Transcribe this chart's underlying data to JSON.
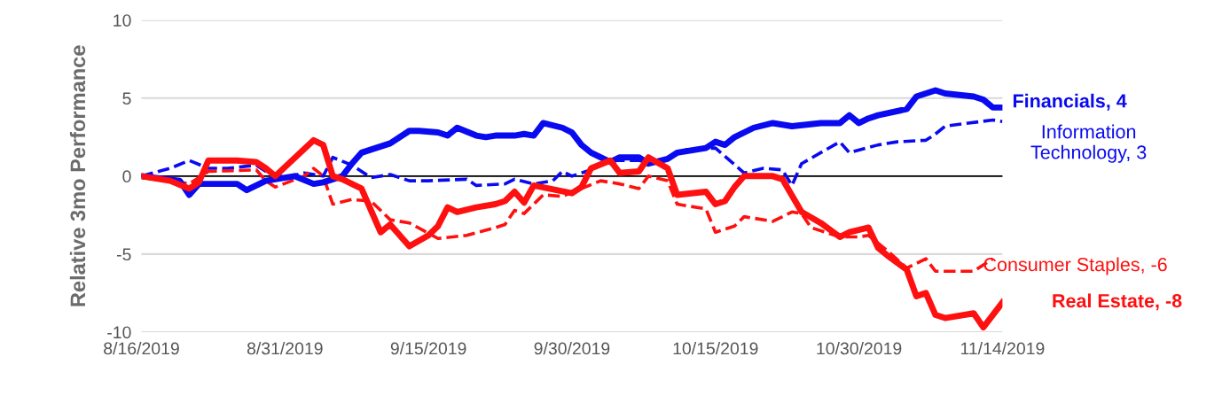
{
  "chart_data": {
    "type": "line",
    "ylabel": "Relative 3mo Performance",
    "xlim": [
      "2019-08-16",
      "2019-11-14"
    ],
    "xticks": [
      {
        "value": "2019-08-16",
        "label": "8/16/2019"
      },
      {
        "value": "2019-08-31",
        "label": "8/31/2019"
      },
      {
        "value": "2019-09-15",
        "label": "9/15/2019"
      },
      {
        "value": "2019-09-30",
        "label": "9/30/2019"
      },
      {
        "value": "2019-10-15",
        "label": "10/15/2019"
      },
      {
        "value": "2019-10-30",
        "label": "10/30/2019"
      },
      {
        "value": "2019-11-14",
        "label": "11/14/2019"
      }
    ],
    "ylim": [
      -10,
      10
    ],
    "yticks": [
      -10,
      -5,
      0,
      5,
      10
    ],
    "grid": "y",
    "ref_lines": [
      {
        "axis": "y",
        "value": 0,
        "color": "#000000"
      }
    ],
    "series": [
      {
        "name": "Financials, 4",
        "color": "#0a0af0",
        "line_style": "solid",
        "x": [
          "2019-08-16",
          "2019-08-20",
          "2019-08-21",
          "2019-08-22",
          "2019-08-26",
          "2019-08-27",
          "2019-08-29",
          "2019-09-01",
          "2019-09-03",
          "2019-09-04",
          "2019-09-06",
          "2019-09-07",
          "2019-09-08",
          "2019-09-10",
          "2019-09-11",
          "2019-09-13",
          "2019-09-14",
          "2019-09-16",
          "2019-09-17",
          "2019-09-18",
          "2019-09-20",
          "2019-09-21",
          "2019-09-22",
          "2019-09-24",
          "2019-09-25",
          "2019-09-26",
          "2019-09-27",
          "2019-09-29",
          "2019-09-30",
          "2019-10-01",
          "2019-10-02",
          "2019-10-04",
          "2019-10-05",
          "2019-10-06",
          "2019-10-07",
          "2019-10-08",
          "2019-10-10",
          "2019-10-11",
          "2019-10-14",
          "2019-10-15",
          "2019-10-16",
          "2019-10-17",
          "2019-10-19",
          "2019-10-21",
          "2019-10-23",
          "2019-10-26",
          "2019-10-28",
          "2019-10-29",
          "2019-10-30",
          "2019-10-31",
          "2019-11-01",
          "2019-11-04",
          "2019-11-05",
          "2019-11-07",
          "2019-11-08",
          "2019-11-11",
          "2019-11-12",
          "2019-11-13",
          "2019-11-14"
        ],
        "values": [
          0,
          -0.3,
          -1.2,
          -0.5,
          -0.5,
          -0.9,
          -0.3,
          0,
          -0.5,
          -0.4,
          0,
          0.8,
          1.5,
          1.9,
          2.1,
          2.9,
          2.9,
          2.8,
          2.6,
          3.1,
          2.6,
          2.5,
          2.6,
          2.6,
          2.7,
          2.6,
          3.4,
          3.1,
          2.8,
          2.0,
          1.5,
          0.9,
          1.2,
          1.2,
          1.2,
          0.8,
          1.1,
          1.5,
          1.8,
          2.2,
          2.0,
          2.5,
          3.1,
          3.4,
          3.2,
          3.4,
          3.4,
          3.9,
          3.4,
          3.7,
          3.9,
          4.3,
          5.1,
          5.5,
          5.3,
          5.1,
          4.9,
          4.4,
          4.4
        ]
      },
      {
        "name": "Information\nTechnology, 3",
        "color": "#0a0af0",
        "line_style": "dashed",
        "x": [
          "2019-08-16",
          "2019-08-19",
          "2019-08-21",
          "2019-08-23",
          "2019-08-25",
          "2019-08-28",
          "2019-08-29",
          "2019-08-31",
          "2019-09-02",
          "2019-09-04",
          "2019-09-05",
          "2019-09-07",
          "2019-09-09",
          "2019-09-11",
          "2019-09-13",
          "2019-09-15",
          "2019-09-19",
          "2019-09-20",
          "2019-09-23",
          "2019-09-24",
          "2019-09-26",
          "2019-09-28",
          "2019-09-29",
          "2019-09-30",
          "2019-10-02",
          "2019-10-04",
          "2019-10-07",
          "2019-10-09",
          "2019-10-10",
          "2019-10-12",
          "2019-10-15",
          "2019-10-18",
          "2019-10-20",
          "2019-10-22",
          "2019-10-23",
          "2019-10-24",
          "2019-10-26",
          "2019-10-28",
          "2019-10-29",
          "2019-11-01",
          "2019-11-03",
          "2019-11-06",
          "2019-11-07",
          "2019-11-08",
          "2019-11-13",
          "2019-11-14"
        ],
        "values": [
          0,
          0.5,
          1.0,
          0.5,
          0.5,
          0.7,
          0.3,
          -0.1,
          0.2,
          0,
          1.2,
          0.7,
          -0.1,
          0.1,
          -0.3,
          -0.3,
          -0.2,
          -0.6,
          -0.5,
          -0.2,
          -0.5,
          -0.3,
          0.3,
          0,
          0.4,
          1.0,
          1.0,
          0.8,
          1.2,
          1.7,
          1.8,
          0.2,
          0.5,
          0.4,
          -0.6,
          0.8,
          1.5,
          2.2,
          1.5,
          2.0,
          2.2,
          2.3,
          2.7,
          3.2,
          3.6,
          3.5
        ]
      },
      {
        "name": "Consumer Staples, -6",
        "color": "#ff1010",
        "line_style": "dashed",
        "x": [
          "2019-08-16",
          "2019-08-21",
          "2019-08-23",
          "2019-08-28",
          "2019-08-29",
          "2019-08-30",
          "2019-09-02",
          "2019-09-03",
          "2019-09-04",
          "2019-09-05",
          "2019-09-07",
          "2019-09-09",
          "2019-09-11",
          "2019-09-13",
          "2019-09-16",
          "2019-09-19",
          "2019-09-22",
          "2019-09-23",
          "2019-09-24",
          "2019-09-25",
          "2019-09-27",
          "2019-09-29",
          "2019-10-01",
          "2019-10-03",
          "2019-10-05",
          "2019-10-07",
          "2019-10-08",
          "2019-10-10",
          "2019-10-11",
          "2019-10-14",
          "2019-10-15",
          "2019-10-17",
          "2019-10-18",
          "2019-10-21",
          "2019-10-23",
          "2019-10-24",
          "2019-10-25",
          "2019-10-28",
          "2019-10-30",
          "2019-10-31",
          "2019-11-02",
          "2019-11-04",
          "2019-11-06",
          "2019-11-07",
          "2019-11-11",
          "2019-11-13"
        ],
        "values": [
          0,
          -0.5,
          0.3,
          0.4,
          -0.3,
          -0.7,
          0,
          0.5,
          0,
          -1.8,
          -1.5,
          -1.6,
          -2.8,
          -3.0,
          -4.0,
          -3.8,
          -3.3,
          -3.1,
          -2.2,
          -2.4,
          -1.2,
          -1.3,
          -0.8,
          -0.3,
          -0.5,
          -0.8,
          0,
          -0.3,
          -1.8,
          -2.1,
          -3.6,
          -3.2,
          -2.6,
          -2.9,
          -2.3,
          -2.4,
          -3.3,
          -3.9,
          -3.9,
          -3.8,
          -4.8,
          -5.9,
          -5.3,
          -6.1,
          -6.1,
          -5.3
        ]
      },
      {
        "name": "Real Estate, -8",
        "color": "#ff1010",
        "line_style": "solid",
        "x": [
          "2019-08-16",
          "2019-08-19",
          "2019-08-21",
          "2019-08-22",
          "2019-08-23",
          "2019-08-26",
          "2019-08-28",
          "2019-08-29",
          "2019-08-30",
          "2019-09-03",
          "2019-09-04",
          "2019-09-05",
          "2019-09-06",
          "2019-09-08",
          "2019-09-10",
          "2019-09-11",
          "2019-09-13",
          "2019-09-15",
          "2019-09-16",
          "2019-09-17",
          "2019-09-18",
          "2019-09-20",
          "2019-09-22",
          "2019-09-23",
          "2019-09-24",
          "2019-09-25",
          "2019-09-26",
          "2019-09-30",
          "2019-10-01",
          "2019-10-02",
          "2019-10-04",
          "2019-10-05",
          "2019-10-07",
          "2019-10-08",
          "2019-10-10",
          "2019-10-11",
          "2019-10-14",
          "2019-10-15",
          "2019-10-16",
          "2019-10-17",
          "2019-10-18",
          "2019-10-20",
          "2019-10-21",
          "2019-10-22",
          "2019-10-24",
          "2019-10-26",
          "2019-10-28",
          "2019-10-29",
          "2019-10-31",
          "2019-11-01",
          "2019-11-02",
          "2019-11-04",
          "2019-11-05",
          "2019-11-06",
          "2019-11-07",
          "2019-11-08",
          "2019-11-11",
          "2019-11-12",
          "2019-11-14"
        ],
        "values": [
          0,
          -0.3,
          -0.8,
          -0.4,
          1.0,
          1.0,
          0.9,
          0.5,
          0,
          2.3,
          2.0,
          0,
          -0.2,
          -0.8,
          -3.6,
          -3.1,
          -4.5,
          -3.8,
          -3.2,
          -2.0,
          -2.3,
          -2.0,
          -1.8,
          -1.6,
          -1.0,
          -1.7,
          -0.6,
          -1.1,
          -0.7,
          0.5,
          1.0,
          0.2,
          0.3,
          1.2,
          0.5,
          -1.2,
          -1.0,
          -1.8,
          -1.6,
          -0.7,
          0,
          0,
          0,
          -0.2,
          -2.3,
          -3.0,
          -3.9,
          -3.6,
          -3.3,
          -4.6,
          -5.1,
          -6.0,
          -7.7,
          -7.5,
          -8.9,
          -9.1,
          -8.8,
          -9.7,
          -8.1
        ]
      }
    ]
  }
}
